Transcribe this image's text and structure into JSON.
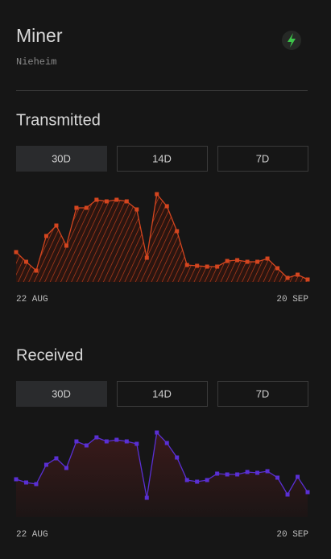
{
  "header": {
    "title": "Miner",
    "subtitle": "Nieheim"
  },
  "chart_data": [
    {
      "type": "area",
      "title": "Transmitted",
      "tabs": [
        "30D",
        "14D",
        "7D"
      ],
      "active_tab": 0,
      "categories": [
        "22 AUG",
        null,
        null,
        null,
        null,
        null,
        null,
        null,
        null,
        null,
        null,
        null,
        null,
        null,
        null,
        null,
        null,
        null,
        null,
        null,
        null,
        null,
        null,
        null,
        null,
        null,
        null,
        null,
        null,
        "20 SEP"
      ],
      "series": [
        {
          "color": "#d4451f",
          "values": [
            37,
            25,
            14,
            57,
            70,
            45,
            92,
            92,
            102,
            100,
            102,
            100,
            90,
            30,
            109,
            94,
            63,
            21,
            20,
            19,
            19,
            26,
            27,
            25,
            25,
            29,
            17,
            5,
            9,
            3
          ]
        }
      ],
      "ylim": [
        0,
        120
      ],
      "fill": "hatch"
    },
    {
      "type": "area",
      "title": "Received",
      "tabs": [
        "30D",
        "14D",
        "7D"
      ],
      "active_tab": 0,
      "categories": [
        "22 AUG",
        null,
        null,
        null,
        null,
        null,
        null,
        null,
        null,
        null,
        null,
        null,
        null,
        null,
        null,
        null,
        null,
        null,
        null,
        null,
        null,
        null,
        null,
        null,
        null,
        null,
        null,
        null,
        null,
        "20 SEP"
      ],
      "series": [
        {
          "color": "#5a2fd4",
          "values": [
            47,
            43,
            41,
            65,
            73,
            61,
            94,
            89,
            99,
            94,
            96,
            94,
            91,
            24,
            105,
            92,
            74,
            46,
            44,
            46,
            54,
            53,
            53,
            56,
            55,
            57,
            49,
            28,
            50,
            31
          ]
        }
      ],
      "ylim": [
        0,
        120
      ],
      "fill": "gradient"
    }
  ]
}
